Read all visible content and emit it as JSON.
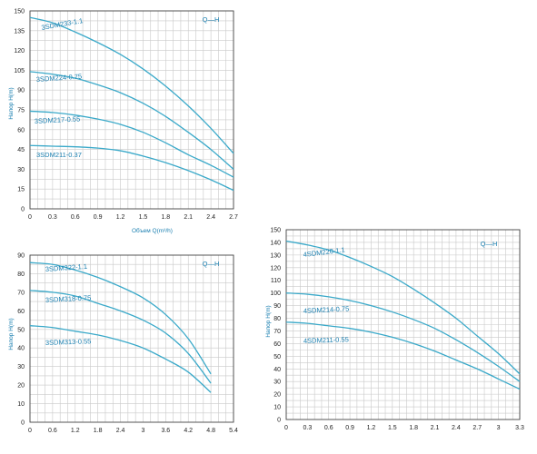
{
  "chart_data": [
    {
      "type": "line",
      "legend_text": "Q—H",
      "xlabel": "Объем Q(m³/h)",
      "ylabel": "Напор H(m)",
      "x_ticks": [
        "0",
        "0.3",
        "0.6",
        "0.9",
        "1.2",
        "1.5",
        "1.8",
        "2.1",
        "2.4",
        "2.7"
      ],
      "y_ticks": [
        "0",
        "15",
        "30",
        "45",
        "60",
        "75",
        "90",
        "105",
        "120",
        "135",
        "150"
      ],
      "xlim": [
        0,
        2.7
      ],
      "ylim": [
        0,
        150
      ],
      "series": [
        {
          "name": "3SDM233-1.1",
          "x": [
            0,
            0.3,
            0.6,
            0.9,
            1.2,
            1.5,
            1.8,
            2.1,
            2.4,
            2.7
          ],
          "y": [
            145,
            141,
            134,
            126,
            117,
            106,
            93,
            78,
            61,
            42
          ]
        },
        {
          "name": "3SDM224-0.75",
          "x": [
            0,
            0.3,
            0.6,
            0.9,
            1.2,
            1.5,
            1.8,
            2.1,
            2.4,
            2.7
          ],
          "y": [
            104,
            102,
            99,
            94,
            88,
            80,
            70,
            58,
            45,
            30
          ]
        },
        {
          "name": "3SDM217-0.55",
          "x": [
            0,
            0.3,
            0.6,
            0.9,
            1.2,
            1.5,
            1.8,
            2.1,
            2.4,
            2.7
          ],
          "y": [
            74,
            73,
            71,
            68,
            64,
            58,
            50,
            41,
            33,
            24
          ]
        },
        {
          "name": "3SDM211-0.37",
          "x": [
            0,
            0.3,
            0.6,
            0.9,
            1.2,
            1.5,
            1.8,
            2.1,
            2.4,
            2.7
          ],
          "y": [
            48,
            47.5,
            47,
            46,
            44,
            40,
            35,
            29,
            22,
            14
          ]
        }
      ]
    },
    {
      "type": "line",
      "legend_text": "Q—H",
      "xlabel": "",
      "ylabel": "Напор H(m)",
      "x_ticks": [
        "0",
        "0.6",
        "1.2",
        "1.8",
        "2.4",
        "3",
        "3.6",
        "4.2",
        "4.8",
        "5.4"
      ],
      "y_ticks": [
        "0",
        "10",
        "20",
        "30",
        "40",
        "50",
        "60",
        "70",
        "80",
        "90"
      ],
      "xlim": [
        0,
        5.4
      ],
      "ylim": [
        0,
        90
      ],
      "series": [
        {
          "name": "3SDM322-1.1",
          "x": [
            0,
            0.6,
            1.2,
            1.8,
            2.4,
            3,
            3.6,
            4.2,
            4.8
          ],
          "y": [
            86,
            85,
            82,
            78,
            73,
            67,
            58,
            45,
            26
          ]
        },
        {
          "name": "3SDM318-0.75",
          "x": [
            0,
            0.6,
            1.2,
            1.8,
            2.4,
            3,
            3.6,
            4.2,
            4.8
          ],
          "y": [
            71,
            70,
            68,
            64,
            60,
            55,
            48,
            37,
            21
          ]
        },
        {
          "name": "3SDM313-0.55",
          "x": [
            0,
            0.6,
            1.2,
            1.8,
            2.4,
            3,
            3.6,
            4.2,
            4.8
          ],
          "y": [
            52,
            51,
            49,
            47,
            44,
            40,
            34,
            27,
            16
          ]
        }
      ]
    },
    {
      "type": "line",
      "legend_text": "Q—H",
      "xlabel": "",
      "ylabel": "Напор H(m)",
      "x_ticks": [
        "0",
        "0.3",
        "0.6",
        "0.9",
        "1.2",
        "1.5",
        "1.8",
        "2.1",
        "2.4",
        "2.7",
        "3",
        "3.3"
      ],
      "y_ticks": [
        "0",
        "10",
        "20",
        "30",
        "40",
        "50",
        "60",
        "70",
        "80",
        "90",
        "100",
        "110",
        "120",
        "130",
        "140",
        "150"
      ],
      "xlim": [
        0,
        3.3
      ],
      "ylim": [
        0,
        150
      ],
      "series": [
        {
          "name": "4SDM220-1.1",
          "x": [
            0,
            0.3,
            0.6,
            0.9,
            1.2,
            1.5,
            1.8,
            2.1,
            2.4,
            2.7,
            3,
            3.3
          ],
          "y": [
            141,
            138,
            134,
            128,
            121,
            113,
            103,
            92,
            80,
            66,
            52,
            36
          ]
        },
        {
          "name": "4SDM214-0.75",
          "x": [
            0,
            0.3,
            0.6,
            0.9,
            1.2,
            1.5,
            1.8,
            2.1,
            2.4,
            2.7,
            3,
            3.3
          ],
          "y": [
            100,
            99,
            97,
            94,
            90,
            85,
            79,
            72,
            63,
            53,
            42,
            30
          ]
        },
        {
          "name": "4SDM211-0.55",
          "x": [
            0,
            0.3,
            0.6,
            0.9,
            1.2,
            1.5,
            1.8,
            2.1,
            2.4,
            2.7,
            3,
            3.3
          ],
          "y": [
            77,
            76,
            74,
            72,
            69,
            65,
            60,
            54,
            47,
            40,
            32,
            24
          ]
        }
      ]
    }
  ]
}
